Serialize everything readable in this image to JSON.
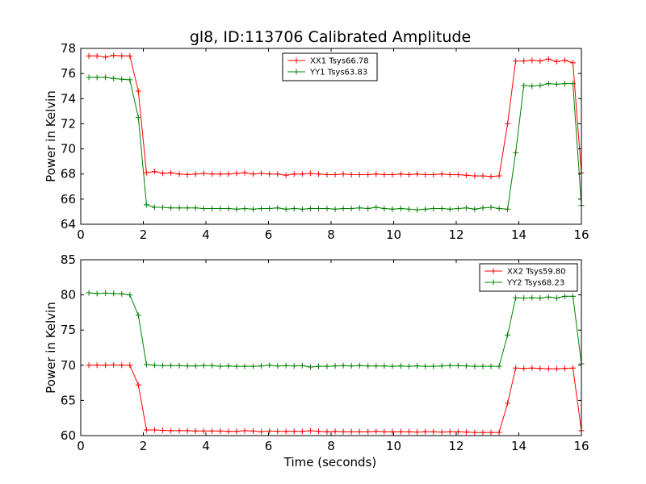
{
  "figure": {
    "title": "gl8, ID:113706 Calibrated Amplitude",
    "xlabel": "Time (seconds)"
  },
  "chart_data": [
    {
      "type": "line",
      "title": "gl8, ID:113706 Calibrated Amplitude",
      "xlabel": "",
      "ylabel": "Power in Kelvin",
      "xlim": [
        0,
        16
      ],
      "ylim": [
        64,
        78
      ],
      "xticks": [
        0,
        2,
        4,
        6,
        8,
        10,
        12,
        14,
        16
      ],
      "yticks": [
        64,
        66,
        68,
        70,
        72,
        74,
        76,
        78
      ],
      "legend_position": "top-center",
      "series": [
        {
          "name": "XX1 Tsys66.78",
          "color": "#ff0000",
          "x": [
            0.26,
            0.52,
            0.79,
            1.05,
            1.31,
            1.57,
            1.84,
            2.1,
            2.36,
            2.62,
            2.88,
            3.15,
            3.41,
            3.67,
            3.93,
            4.2,
            4.46,
            4.72,
            4.98,
            5.24,
            5.51,
            5.77,
            6.03,
            6.29,
            6.56,
            6.82,
            7.08,
            7.34,
            7.6,
            7.87,
            8.13,
            8.39,
            8.65,
            8.91,
            9.18,
            9.44,
            9.7,
            9.96,
            10.23,
            10.49,
            10.75,
            11.01,
            11.27,
            11.54,
            11.8,
            12.06,
            12.32,
            12.59,
            12.85,
            13.11,
            13.37,
            13.64,
            13.9,
            14.16,
            14.42,
            14.68,
            14.95,
            15.21,
            15.47,
            15.73,
            16.0
          ],
          "y": [
            77.4,
            77.4,
            77.3,
            77.45,
            77.4,
            77.4,
            74.6,
            68.1,
            68.2,
            68.05,
            68.1,
            68.0,
            67.95,
            68.0,
            68.05,
            68.0,
            68.0,
            68.0,
            68.05,
            68.1,
            68.0,
            68.05,
            68.0,
            68.0,
            67.9,
            68.0,
            68.0,
            68.05,
            68.0,
            67.95,
            67.95,
            68.0,
            67.95,
            67.95,
            67.95,
            68.0,
            67.95,
            67.95,
            68.0,
            67.95,
            68.0,
            67.95,
            67.95,
            68.0,
            67.95,
            67.95,
            67.9,
            67.85,
            67.85,
            67.8,
            67.85,
            72.0,
            77.0,
            77.0,
            77.05,
            77.0,
            77.15,
            76.95,
            77.05,
            76.85,
            68.1
          ]
        },
        {
          "name": "YY1 Tsys63.83",
          "color": "#008000",
          "x": [
            0.26,
            0.52,
            0.79,
            1.05,
            1.31,
            1.57,
            1.84,
            2.1,
            2.36,
            2.62,
            2.88,
            3.15,
            3.41,
            3.67,
            3.93,
            4.2,
            4.46,
            4.72,
            4.98,
            5.24,
            5.51,
            5.77,
            6.03,
            6.29,
            6.56,
            6.82,
            7.08,
            7.34,
            7.6,
            7.87,
            8.13,
            8.39,
            8.65,
            8.91,
            9.18,
            9.44,
            9.7,
            9.96,
            10.23,
            10.49,
            10.75,
            11.01,
            11.27,
            11.54,
            11.8,
            12.06,
            12.32,
            12.59,
            12.85,
            13.11,
            13.37,
            13.64,
            13.9,
            14.16,
            14.42,
            14.68,
            14.95,
            15.21,
            15.47,
            15.73,
            16.0
          ],
          "y": [
            75.7,
            75.7,
            75.7,
            75.6,
            75.55,
            75.5,
            72.5,
            65.55,
            65.35,
            65.35,
            65.3,
            65.3,
            65.3,
            65.3,
            65.25,
            65.25,
            65.25,
            65.25,
            65.2,
            65.25,
            65.2,
            65.25,
            65.25,
            65.3,
            65.2,
            65.25,
            65.2,
            65.25,
            65.25,
            65.25,
            65.2,
            65.25,
            65.25,
            65.3,
            65.25,
            65.35,
            65.25,
            65.2,
            65.25,
            65.2,
            65.15,
            65.2,
            65.25,
            65.25,
            65.2,
            65.25,
            65.3,
            65.2,
            65.3,
            65.35,
            65.25,
            65.2,
            69.7,
            75.05,
            75.0,
            75.05,
            75.2,
            75.15,
            75.2,
            75.2,
            65.5
          ]
        }
      ]
    },
    {
      "type": "line",
      "title": "",
      "xlabel": "Time (seconds)",
      "ylabel": "Power in Kelvin",
      "xlim": [
        0,
        16
      ],
      "ylim": [
        60,
        85
      ],
      "xticks": [
        0,
        2,
        4,
        6,
        8,
        10,
        12,
        14,
        16
      ],
      "yticks": [
        60,
        65,
        70,
        75,
        80,
        85
      ],
      "legend_position": "top-right",
      "series": [
        {
          "name": "XX2 Tsys59.80",
          "color": "#ff0000",
          "x": [
            0.26,
            0.52,
            0.79,
            1.05,
            1.31,
            1.57,
            1.84,
            2.1,
            2.36,
            2.62,
            2.88,
            3.15,
            3.41,
            3.67,
            3.93,
            4.2,
            4.46,
            4.72,
            4.98,
            5.24,
            5.51,
            5.77,
            6.03,
            6.29,
            6.56,
            6.82,
            7.08,
            7.34,
            7.6,
            7.87,
            8.13,
            8.39,
            8.65,
            8.91,
            9.18,
            9.44,
            9.7,
            9.96,
            10.23,
            10.49,
            10.75,
            11.01,
            11.27,
            11.54,
            11.8,
            12.06,
            12.32,
            12.59,
            12.85,
            13.11,
            13.37,
            13.64,
            13.9,
            14.16,
            14.42,
            14.68,
            14.95,
            15.21,
            15.47,
            15.73,
            16.0
          ],
          "y": [
            70.0,
            70.0,
            70.0,
            70.05,
            70.0,
            70.0,
            67.2,
            60.8,
            60.8,
            60.75,
            60.7,
            60.7,
            60.7,
            60.65,
            60.65,
            60.65,
            60.65,
            60.6,
            60.6,
            60.7,
            60.65,
            60.55,
            60.65,
            60.6,
            60.6,
            60.6,
            60.6,
            60.7,
            60.6,
            60.55,
            60.6,
            60.55,
            60.55,
            60.55,
            60.55,
            60.6,
            60.55,
            60.55,
            60.55,
            60.55,
            60.5,
            60.55,
            60.55,
            60.5,
            60.55,
            60.55,
            60.5,
            60.45,
            60.45,
            60.45,
            60.45,
            64.6,
            69.6,
            69.55,
            69.6,
            69.55,
            69.5,
            69.5,
            69.55,
            69.6,
            60.7
          ]
        },
        {
          "name": "YY2 Tsys68.23",
          "color": "#008000",
          "x": [
            0.26,
            0.52,
            0.79,
            1.05,
            1.31,
            1.57,
            1.84,
            2.1,
            2.36,
            2.62,
            2.88,
            3.15,
            3.41,
            3.67,
            3.93,
            4.2,
            4.46,
            4.72,
            4.98,
            5.24,
            5.51,
            5.77,
            6.03,
            6.29,
            6.56,
            6.82,
            7.08,
            7.34,
            7.6,
            7.87,
            8.13,
            8.39,
            8.65,
            8.91,
            9.18,
            9.44,
            9.7,
            9.96,
            10.23,
            10.49,
            10.75,
            11.01,
            11.27,
            11.54,
            11.8,
            12.06,
            12.32,
            12.59,
            12.85,
            13.11,
            13.37,
            13.64,
            13.9,
            14.16,
            14.42,
            14.68,
            14.95,
            15.21,
            15.47,
            15.73,
            16.0
          ],
          "y": [
            80.3,
            80.2,
            80.25,
            80.2,
            80.15,
            80.0,
            77.1,
            70.1,
            70.0,
            69.95,
            69.95,
            69.95,
            69.9,
            69.9,
            69.95,
            69.95,
            69.85,
            69.9,
            69.85,
            69.85,
            69.85,
            69.9,
            70.0,
            69.9,
            69.95,
            69.9,
            69.95,
            69.75,
            69.85,
            69.85,
            69.9,
            69.95,
            69.9,
            69.95,
            69.9,
            69.9,
            69.9,
            69.85,
            69.9,
            69.85,
            69.9,
            69.85,
            69.85,
            69.9,
            69.95,
            69.95,
            69.9,
            69.85,
            69.85,
            69.85,
            69.85,
            74.3,
            79.6,
            79.55,
            79.6,
            79.55,
            79.7,
            79.55,
            79.8,
            79.8,
            70.2
          ]
        }
      ]
    }
  ]
}
